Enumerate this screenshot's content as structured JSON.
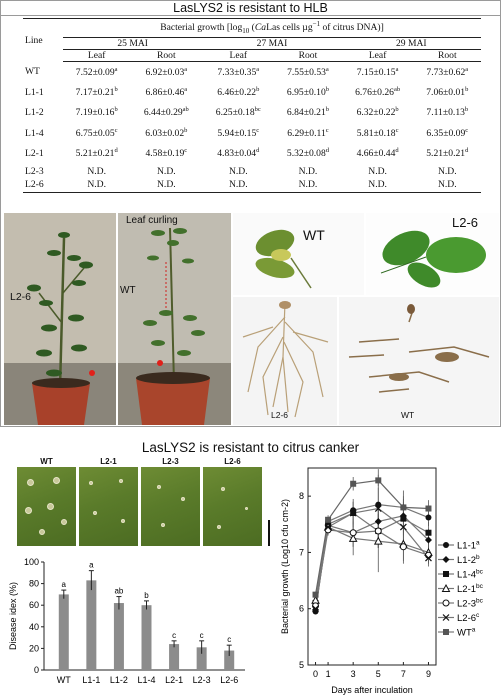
{
  "panel_a": {
    "title": "LasLYS2 is resistant to HLB",
    "table": {
      "caption_prefix": "Bacterial growth [log",
      "caption_sub": "10",
      "caption_italic": "Ca",
      "caption_rest": "Las cells µg",
      "caption_sup": "−1",
      "caption_end": " of citrus DNA)]",
      "line_header": "Line",
      "groups": [
        "25 MAI",
        "27 MAI",
        "29 MAI"
      ],
      "subheaders": [
        "Leaf",
        "Root",
        "Leaf",
        "Root",
        "Leaf",
        "Root"
      ],
      "rows": [
        {
          "line": "WT",
          "cells": [
            [
              "7.52±0.09",
              "a"
            ],
            [
              "6.92±0.03",
              "a"
            ],
            [
              "7.33±0.35",
              "a"
            ],
            [
              "7.55±0.53",
              "a"
            ],
            [
              "7.15±0.15",
              "a"
            ],
            [
              "7.73±0.62",
              "a"
            ]
          ]
        },
        {
          "line": "L1-1",
          "cells": [
            [
              "7.17±0.21",
              "b"
            ],
            [
              "6.86±0.46",
              "a"
            ],
            [
              "6.46±0.22",
              "b"
            ],
            [
              "6.95±0.10",
              "b"
            ],
            [
              "6.76±0.26",
              "ab"
            ],
            [
              "7.06±0.01",
              "b"
            ]
          ]
        },
        {
          "line": "L1-2",
          "cells": [
            [
              "7.19±0.16",
              "b"
            ],
            [
              "6.44±0.29",
              "ab"
            ],
            [
              "6.25±0.18",
              "bc"
            ],
            [
              "6.84±0.21",
              "b"
            ],
            [
              "6.32±0.22",
              "b"
            ],
            [
              "7.11±0.13",
              "b"
            ]
          ]
        },
        {
          "line": "L1-4",
          "cells": [
            [
              "6.75±0.05",
              "c"
            ],
            [
              "6.03±0.02",
              "b"
            ],
            [
              "5.94±0.15",
              "c"
            ],
            [
              "6.29±0.11",
              "c"
            ],
            [
              "5.81±0.18",
              "c"
            ],
            [
              "6.35±0.09",
              "c"
            ]
          ]
        },
        {
          "line": "L2-1",
          "cells": [
            [
              "5.21±0.21",
              "d"
            ],
            [
              "4.58±0.19",
              "c"
            ],
            [
              "4.83±0.04",
              "d"
            ],
            [
              "5.32±0.08",
              "d"
            ],
            [
              "4.66±0.44",
              "d"
            ],
            [
              "5.21±0.21",
              "d"
            ]
          ]
        },
        {
          "line": "L2-3",
          "cells": [
            [
              "N.D.",
              ""
            ],
            [
              "N.D.",
              ""
            ],
            [
              "N.D.",
              ""
            ],
            [
              "N.D.",
              ""
            ],
            [
              "N.D.",
              ""
            ],
            [
              "N.D.",
              ""
            ]
          ]
        },
        {
          "line": "L2-6",
          "cells": [
            [
              "N.D.",
              ""
            ],
            [
              "N.D.",
              ""
            ],
            [
              "N.D.",
              ""
            ],
            [
              "N.D.",
              ""
            ],
            [
              "N.D.",
              ""
            ],
            [
              "N.D.",
              ""
            ]
          ]
        }
      ]
    },
    "photo_labels": {
      "plant_left": "L2-6",
      "plant_right_wt": "WT",
      "leaf_curling": "Leaf curling",
      "leaf_wt": "WT",
      "leaf_l26": "L2-6",
      "root_l26": "L2-6",
      "root_wt": "WT"
    }
  },
  "panel_b": {
    "title": "LasLYS2 is resistant to citrus canker",
    "leaf_labels": [
      "WT",
      "L2-1",
      "L2-3",
      "L2-6"
    ]
  },
  "chart_data": [
    {
      "type": "bar",
      "categories": [
        "WT",
        "L1-1",
        "L1-2",
        "L1-4",
        "L2-1",
        "L2-3",
        "L2-6"
      ],
      "values": [
        70,
        83,
        62,
        60,
        24,
        21,
        18
      ],
      "errors": [
        4,
        9,
        6,
        4,
        3,
        6,
        5
      ],
      "significance": [
        "a",
        "a",
        "ab",
        "b",
        "c",
        "c",
        "c"
      ],
      "title": "",
      "xlabel": "",
      "ylabel": "Disease idex (%)",
      "ylim": [
        0,
        100
      ],
      "yticks": [
        0,
        20,
        40,
        60,
        80,
        100
      ],
      "bar_color": "#8c8c8c"
    },
    {
      "type": "line",
      "x": [
        0,
        1,
        3,
        5,
        7,
        9
      ],
      "xticks": [
        0,
        1,
        3,
        5,
        7,
        9
      ],
      "xlabel": "Days after inculation",
      "ylabel": "Bacterial growth (Log10 cfu cm-2)",
      "ylim": [
        5,
        8.5
      ],
      "yticks": [
        5,
        6,
        7,
        8
      ],
      "series": [
        {
          "name": "L1-1",
          "sig": "a",
          "marker": "circle-filled",
          "values": [
            5.95,
            7.55,
            7.75,
            7.85,
            7.8,
            7.62
          ],
          "errors": [
            0.05,
            0.08,
            0.15,
            0.3,
            0.2,
            0.15
          ]
        },
        {
          "name": "L1-2",
          "sig": "b",
          "marker": "diamond-filled",
          "values": [
            5.98,
            7.48,
            7.35,
            7.55,
            7.65,
            7.22
          ],
          "errors": [
            0.05,
            0.08,
            0.25,
            0.3,
            0.3,
            0.2
          ]
        },
        {
          "name": "L1-4",
          "sig": "bc",
          "marker": "square-filled",
          "values": [
            6.1,
            7.5,
            7.7,
            7.38,
            7.6,
            7.35
          ],
          "errors": [
            0.05,
            0.08,
            0.25,
            0.3,
            0.3,
            0.2
          ]
        },
        {
          "name": "L2-1",
          "sig": "bc",
          "marker": "triangle-open",
          "values": [
            6.15,
            7.45,
            7.25,
            7.2,
            7.15,
            7.0
          ],
          "errors": [
            0.05,
            0.1,
            0.3,
            0.55,
            0.3,
            0.15
          ]
        },
        {
          "name": "L2-3",
          "sig": "bc",
          "marker": "circle-open",
          "values": [
            6.05,
            7.4,
            7.35,
            7.38,
            7.1,
            6.95
          ],
          "errors": [
            0.05,
            0.1,
            0.25,
            0.3,
            0.3,
            0.15
          ]
        },
        {
          "name": "L2-6",
          "sig": "c",
          "marker": "x",
          "values": [
            6.0,
            7.45,
            7.7,
            7.78,
            7.45,
            6.9
          ],
          "errors": [
            0.05,
            0.08,
            0.2,
            0.7,
            0.3,
            0.15
          ]
        },
        {
          "name": "WT",
          "sig": "a",
          "marker": "square-filled-gray",
          "values": [
            6.25,
            7.58,
            8.22,
            8.28,
            7.8,
            7.78
          ],
          "errors": [
            0.05,
            0.08,
            0.12,
            0.1,
            0.3,
            0.15
          ]
        }
      ]
    }
  ]
}
